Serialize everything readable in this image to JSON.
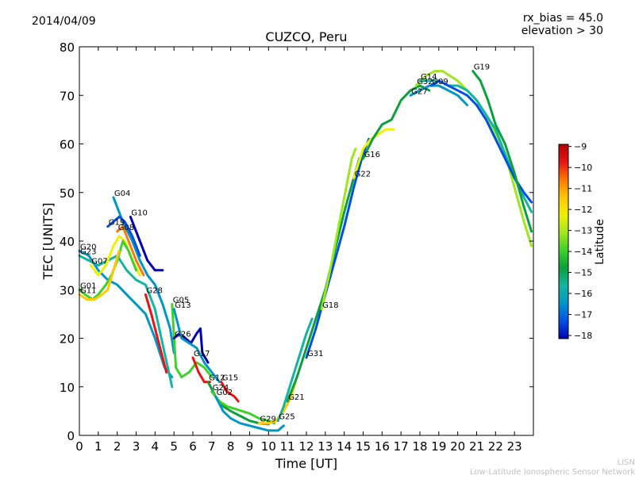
{
  "header": {
    "date": "2014/04/09",
    "rx_bias": "rx_bias = 45.0",
    "elevation": "elevation > 30"
  },
  "footer": {
    "brand_short": "LISN",
    "brand_long": "Low-Latitude Ionospheric Sensor Network"
  },
  "colorbar": {
    "label": "Latitude",
    "ticks": [
      "−9",
      "−10",
      "−11",
      "−12",
      "−13",
      "−14",
      "−15",
      "−16",
      "−17",
      "−18"
    ],
    "range": [
      -18.15,
      -8.9
    ],
    "colors": [
      "#0000b4",
      "#0050e6",
      "#0096c8",
      "#14b4a0",
      "#0aa03c",
      "#3cd228",
      "#a0e61e",
      "#f0f000",
      "#ffc800",
      "#ff7800",
      "#e61414",
      "#b40000"
    ]
  },
  "chart_data": {
    "type": "line",
    "title": "CUZCO, Peru",
    "xlabel": "Time [UT]",
    "ylabel": "TEC [UNITS]",
    "xlim": [
      0,
      24
    ],
    "ylim": [
      0,
      80
    ],
    "xticks": [
      "0",
      "1",
      "2",
      "3",
      "4",
      "5",
      "6",
      "7",
      "8",
      "9",
      "10",
      "11",
      "12",
      "13",
      "14",
      "15",
      "16",
      "17",
      "18",
      "19",
      "20",
      "21",
      "22",
      "23"
    ],
    "yticks": [
      "0",
      "10",
      "20",
      "30",
      "40",
      "50",
      "60",
      "70",
      "80"
    ],
    "grid": false,
    "series": [
      {
        "name": "G04",
        "color": "#0096c8",
        "points": [
          [
            1.8,
            49
          ],
          [
            2.3,
            44
          ],
          [
            2.8,
            40
          ],
          [
            3.2,
            36
          ],
          [
            3.6,
            33
          ],
          [
            4.0,
            31
          ],
          [
            4.4,
            27
          ],
          [
            4.8,
            22
          ],
          [
            5.0,
            17
          ]
        ]
      },
      {
        "name": "G10",
        "color": "#0000b4",
        "points": [
          [
            2.7,
            45
          ],
          [
            3.0,
            42
          ],
          [
            3.3,
            39
          ],
          [
            3.6,
            36
          ],
          [
            4.0,
            34
          ],
          [
            4.4,
            34
          ]
        ]
      },
      {
        "name": "G08",
        "color": "#ff7800",
        "points": [
          [
            2.0,
            42
          ],
          [
            2.3,
            43
          ],
          [
            2.6,
            40
          ],
          [
            3.0,
            36
          ],
          [
            3.4,
            33
          ]
        ]
      },
      {
        "name": "G19",
        "color": "#0050e6",
        "points": [
          [
            1.5,
            43
          ],
          [
            1.8,
            44
          ],
          [
            2.1,
            45
          ],
          [
            2.4,
            44
          ],
          [
            2.8,
            41
          ],
          [
            3.2,
            37
          ]
        ]
      },
      {
        "name": "G20",
        "color": "#0096c8",
        "points": [
          [
            0,
            38
          ],
          [
            0.5,
            37
          ],
          [
            1.0,
            34
          ],
          [
            1.5,
            32
          ],
          [
            2.0,
            31
          ],
          [
            2.5,
            29
          ],
          [
            3.0,
            27
          ],
          [
            3.5,
            25
          ],
          [
            4.0,
            20
          ],
          [
            4.5,
            14
          ],
          [
            4.9,
            12
          ]
        ]
      },
      {
        "name": "G23",
        "color": "#14b4a0",
        "points": [
          [
            0,
            37
          ],
          [
            0.5,
            36
          ],
          [
            1.0,
            35
          ],
          [
            1.5,
            36
          ],
          [
            2.0,
            37
          ],
          [
            2.5,
            34
          ],
          [
            3.0,
            32
          ],
          [
            3.5,
            31
          ],
          [
            4.0,
            26
          ],
          [
            4.5,
            17
          ],
          [
            4.9,
            10
          ]
        ]
      },
      {
        "name": "G07",
        "color": "#f0f000",
        "points": [
          [
            0.6,
            35
          ],
          [
            1.0,
            33
          ],
          [
            1.4,
            35
          ],
          [
            1.8,
            39
          ],
          [
            2.1,
            41
          ],
          [
            2.4,
            40
          ],
          [
            2.8,
            36
          ],
          [
            3.2,
            33
          ]
        ]
      },
      {
        "name": "G01",
        "color": "#3cd228",
        "points": [
          [
            0,
            30
          ],
          [
            0.3,
            29
          ],
          [
            0.7,
            28
          ],
          [
            1.0,
            29
          ],
          [
            1.4,
            31
          ],
          [
            1.7,
            33
          ],
          [
            2.0,
            36
          ],
          [
            2.3,
            40
          ],
          [
            2.6,
            38
          ],
          [
            3.0,
            34
          ]
        ]
      },
      {
        "name": "G11",
        "color": "#ffc800",
        "points": [
          [
            0,
            29
          ],
          [
            0.4,
            28
          ],
          [
            0.8,
            28
          ],
          [
            1.2,
            29
          ],
          [
            1.5,
            30
          ],
          [
            1.8,
            34
          ],
          [
            2.1,
            38
          ]
        ]
      },
      {
        "name": "G28",
        "color": "#e61414",
        "points": [
          [
            3.5,
            29
          ],
          [
            3.8,
            25
          ],
          [
            4.0,
            22
          ],
          [
            4.2,
            19
          ],
          [
            4.4,
            16
          ],
          [
            4.6,
            13
          ]
        ]
      },
      {
        "name": "G05",
        "color": "#3cd228",
        "points": [
          [
            4.9,
            27
          ],
          [
            5.1,
            14
          ],
          [
            5.4,
            12
          ],
          [
            5.8,
            13
          ],
          [
            6.2,
            15
          ],
          [
            6.6,
            14
          ],
          [
            7.0,
            12
          ]
        ]
      },
      {
        "name": "G26",
        "color": "#0000b4",
        "points": [
          [
            5.0,
            20
          ],
          [
            5.3,
            21
          ],
          [
            5.6,
            20
          ],
          [
            5.9,
            19
          ],
          [
            6.2,
            21
          ],
          [
            6.4,
            22
          ],
          [
            6.5,
            17
          ],
          [
            6.8,
            15
          ]
        ]
      },
      {
        "name": "G13",
        "color": "#0096c8",
        "points": [
          [
            5.0,
            26
          ],
          [
            5.4,
            20
          ],
          [
            5.8,
            19
          ],
          [
            6.2,
            18
          ],
          [
            6.6,
            15
          ],
          [
            7.0,
            13
          ],
          [
            7.4,
            11
          ]
        ]
      },
      {
        "name": "G17",
        "color": "#e61414",
        "points": [
          [
            6.0,
            16
          ],
          [
            6.3,
            13
          ],
          [
            6.6,
            11
          ],
          [
            6.9,
            11
          ]
        ]
      },
      {
        "name": "G15",
        "color": "#e61414",
        "points": [
          [
            7.5,
            11
          ],
          [
            7.8,
            9
          ],
          [
            8.2,
            8
          ],
          [
            8.4,
            7
          ]
        ]
      },
      {
        "name": "G12",
        "color": "#0aa03c",
        "points": [
          [
            6.8,
            11
          ],
          [
            7.2,
            8
          ],
          [
            7.6,
            6
          ],
          [
            8.0,
            5
          ],
          [
            8.5,
            4
          ],
          [
            9.0,
            3
          ],
          [
            9.5,
            2.5
          ],
          [
            10.0,
            2.3
          ]
        ]
      },
      {
        "name": "G24",
        "color": "#3cd228",
        "points": [
          [
            7.0,
            9
          ],
          [
            7.4,
            7
          ],
          [
            7.8,
            6
          ],
          [
            8.2,
            5.5
          ],
          [
            8.6,
            5
          ],
          [
            9.0,
            4.5
          ],
          [
            9.5,
            3.5
          ],
          [
            10.0,
            3
          ],
          [
            10.3,
            2.5
          ]
        ]
      },
      {
        "name": "G02",
        "color": "#0096c8",
        "points": [
          [
            7.2,
            8
          ],
          [
            7.6,
            5
          ],
          [
            8.0,
            3.5
          ],
          [
            8.5,
            2.5
          ],
          [
            9.0,
            2
          ],
          [
            9.5,
            1.5
          ],
          [
            10.0,
            1
          ],
          [
            10.5,
            1
          ],
          [
            10.8,
            2
          ]
        ]
      },
      {
        "name": "G29",
        "color": "#ffc800",
        "points": [
          [
            9.5,
            2.5
          ],
          [
            10.0,
            2.5
          ],
          [
            10.4,
            3
          ],
          [
            10.8,
            5
          ],
          [
            11.2,
            8
          ],
          [
            11.5,
            12
          ]
        ]
      },
      {
        "name": "G25",
        "color": "#14b4a0",
        "points": [
          [
            10.5,
            3
          ],
          [
            10.8,
            6
          ],
          [
            11.2,
            11
          ],
          [
            11.6,
            16
          ],
          [
            12.0,
            21
          ],
          [
            12.3,
            24
          ]
        ]
      },
      {
        "name": "G21",
        "color": "#0aa03c",
        "points": [
          [
            11.0,
            7
          ],
          [
            11.5,
            12
          ],
          [
            12.0,
            18
          ],
          [
            12.5,
            24
          ],
          [
            13.0,
            30
          ],
          [
            13.5,
            38
          ],
          [
            14.0,
            46
          ],
          [
            14.5,
            53
          ],
          [
            14.8,
            57
          ]
        ]
      },
      {
        "name": "G31",
        "color": "#0050e6",
        "points": [
          [
            12.0,
            16
          ],
          [
            12.5,
            22
          ],
          [
            13.0,
            29
          ],
          [
            13.5,
            36
          ],
          [
            14.0,
            43
          ],
          [
            14.5,
            51
          ],
          [
            15.0,
            58
          ],
          [
            15.3,
            61
          ]
        ]
      },
      {
        "name": "G18",
        "color": "#a0e61e",
        "points": [
          [
            12.8,
            26
          ],
          [
            13.2,
            33
          ],
          [
            13.6,
            41
          ],
          [
            14.0,
            49
          ],
          [
            14.4,
            57
          ],
          [
            14.6,
            59
          ]
        ]
      },
      {
        "name": "G22",
        "color": "#f0f000",
        "points": [
          [
            14.5,
            53
          ],
          [
            15.0,
            59
          ],
          [
            15.4,
            61
          ],
          [
            15.8,
            62
          ],
          [
            16.2,
            63
          ],
          [
            16.6,
            63
          ]
        ]
      },
      {
        "name": "G16",
        "color": "#0aa03c",
        "points": [
          [
            15.0,
            57
          ],
          [
            15.5,
            61
          ],
          [
            16.0,
            64
          ],
          [
            16.5,
            65
          ],
          [
            17.0,
            69
          ],
          [
            17.5,
            71
          ],
          [
            18.0,
            72
          ],
          [
            18.5,
            71
          ]
        ]
      },
      {
        "name": "G27",
        "color": "#0096c8",
        "points": [
          [
            17.5,
            70
          ],
          [
            18.0,
            71
          ],
          [
            18.5,
            72
          ],
          [
            19.0,
            72
          ],
          [
            19.5,
            71
          ],
          [
            20.0,
            70
          ],
          [
            20.5,
            68
          ]
        ]
      },
      {
        "name": "G32",
        "color": "#a0e61e",
        "points": [
          [
            17.8,
            72
          ],
          [
            18.3,
            74
          ],
          [
            18.8,
            75
          ],
          [
            19.2,
            75
          ],
          [
            19.6,
            74
          ],
          [
            20.0,
            73
          ],
          [
            20.5,
            71
          ],
          [
            21.0,
            69
          ],
          [
            21.5,
            66
          ],
          [
            22.0,
            62
          ],
          [
            22.5,
            58
          ],
          [
            23.0,
            51
          ],
          [
            23.5,
            44
          ],
          [
            23.9,
            39
          ]
        ]
      },
      {
        "name": "G14",
        "color": "#14b4a0",
        "points": [
          [
            18.0,
            73
          ],
          [
            18.5,
            73
          ],
          [
            19.0,
            73
          ],
          [
            19.5,
            72
          ],
          [
            20.0,
            72
          ],
          [
            20.5,
            71
          ],
          [
            21.0,
            69
          ],
          [
            21.5,
            66
          ],
          [
            22.0,
            63
          ],
          [
            22.5,
            58
          ],
          [
            23.0,
            53
          ],
          [
            23.5,
            49
          ],
          [
            23.9,
            46
          ]
        ]
      },
      {
        "name": "G09",
        "color": "#0050e6",
        "points": [
          [
            18.6,
            72
          ],
          [
            19.0,
            73
          ],
          [
            19.5,
            72
          ],
          [
            20.0,
            71
          ],
          [
            20.5,
            70
          ],
          [
            21.0,
            68
          ],
          [
            21.5,
            65
          ],
          [
            22.0,
            61
          ],
          [
            22.5,
            57
          ],
          [
            23.0,
            53
          ],
          [
            23.5,
            50
          ],
          [
            23.9,
            48
          ]
        ]
      },
      {
        "name": "G19",
        "color": "#0aa03c",
        "points": [
          [
            20.8,
            75
          ],
          [
            21.2,
            73
          ],
          [
            21.6,
            69
          ],
          [
            22.0,
            64
          ],
          [
            22.5,
            60
          ],
          [
            23.0,
            54
          ],
          [
            23.5,
            47
          ],
          [
            23.9,
            42
          ]
        ]
      }
    ]
  }
}
